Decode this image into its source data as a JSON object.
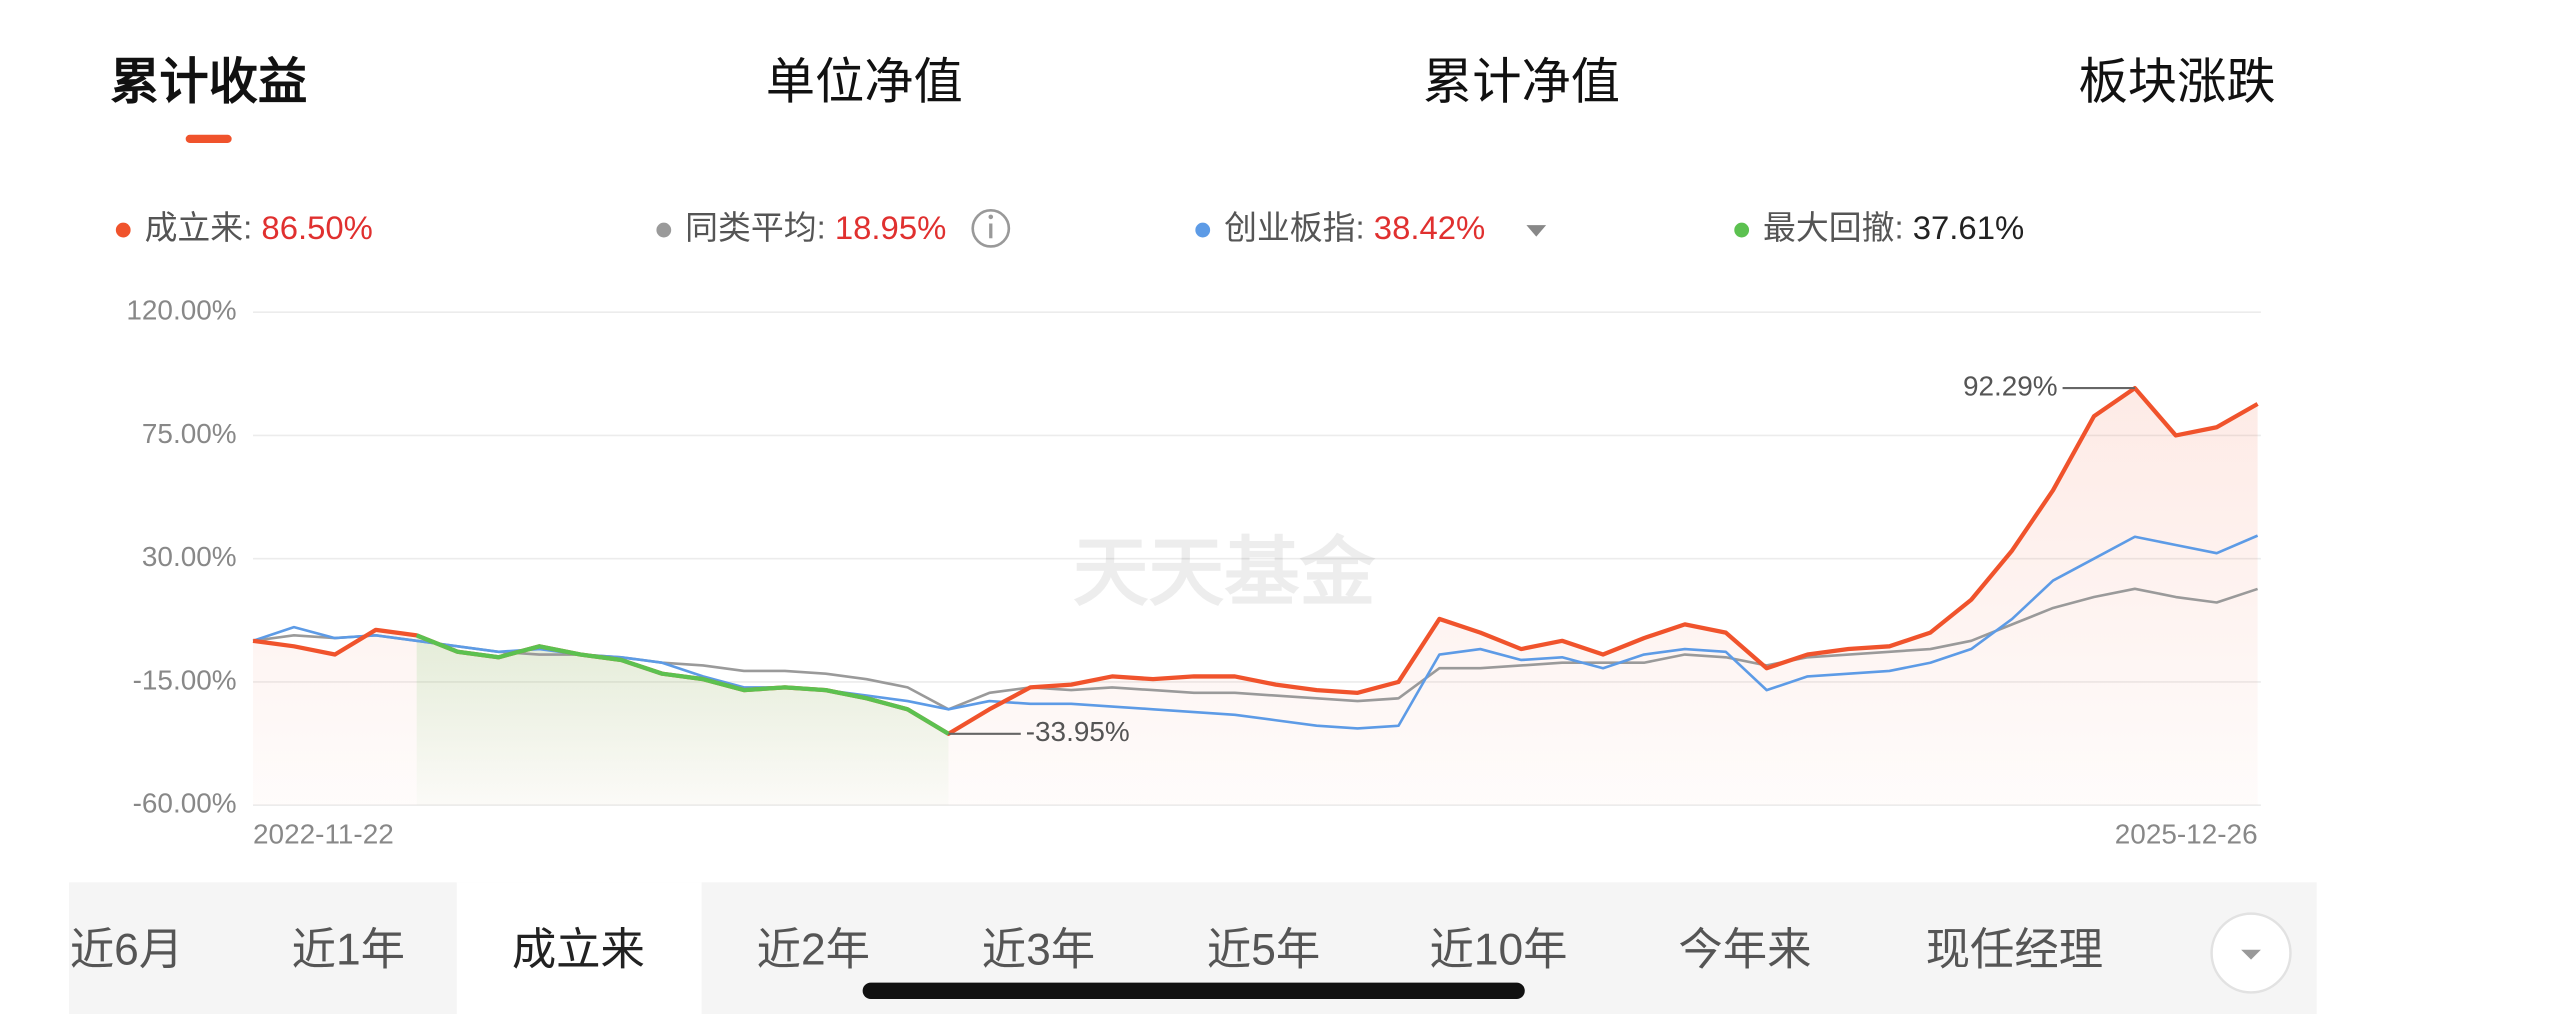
{
  "tabs": {
    "items": [
      "累计收益",
      "单位净值",
      "累计净值",
      "板块涨跌"
    ],
    "active": 0
  },
  "chart_data": {
    "type": "line",
    "watermark": "天天基金",
    "categories": [
      "2022-11-22",
      null,
      null,
      null,
      null,
      null,
      null,
      null,
      null,
      null,
      null,
      null,
      null,
      null,
      null,
      null,
      null,
      null,
      null,
      null,
      null,
      null,
      null,
      null,
      null,
      null,
      null,
      null,
      null,
      null,
      null,
      null,
      null,
      null,
      null,
      null,
      null,
      null,
      null,
      null,
      null,
      null,
      null,
      null,
      null,
      null,
      null,
      null,
      null,
      "2025-12-26"
    ],
    "ylim": [
      -60,
      120
    ],
    "yticks": [
      {
        "value": -60,
        "label": "-60.00%"
      },
      {
        "value": -15,
        "label": "-15.00%"
      },
      {
        "value": 30,
        "label": "30.00%"
      },
      {
        "value": 75,
        "label": "75.00%"
      },
      {
        "value": 120,
        "label": "120.00%"
      }
    ],
    "grid": true,
    "series": [
      {
        "name": "成立来",
        "color": "#f0532c",
        "total": {
          "value": 86.5,
          "label": "86.50%"
        },
        "label_color": "#e0302f",
        "values": [
          0,
          -2,
          -5,
          4,
          2,
          -4,
          -6,
          -2,
          -5,
          -7,
          -12,
          -14,
          -18,
          -17,
          -18,
          -21,
          -25,
          -33.95,
          -25,
          -17,
          -16,
          -13,
          -14,
          -13,
          -13,
          -16,
          -18,
          -19,
          -15,
          8,
          3,
          -3,
          0,
          -5,
          1,
          6,
          3,
          -10,
          -5,
          -3,
          -2,
          3,
          15,
          33,
          55,
          82,
          92.29,
          75,
          78,
          86.5
        ]
      },
      {
        "name": "同类平均",
        "color": "#9a9a9a",
        "total": {
          "value": 18.95,
          "label": "18.95%"
        },
        "label_color": "#e0302f",
        "values": [
          0,
          2,
          1,
          2,
          0,
          -2,
          -4,
          -5,
          -5,
          -6,
          -8,
          -9,
          -11,
          -11,
          -12,
          -14,
          -17,
          -25,
          -19,
          -17,
          -18,
          -17,
          -18,
          -19,
          -19,
          -20,
          -21,
          -22,
          -21,
          -10,
          -10,
          -9,
          -8,
          -8,
          -8,
          -5,
          -6,
          -9,
          -6,
          -5,
          -4,
          -3,
          0,
          6,
          12,
          16,
          19,
          16,
          14,
          18.95
        ]
      },
      {
        "name": "创业板指",
        "color": "#5d9be6",
        "total": {
          "value": 38.42,
          "label": "38.42%"
        },
        "label_color": "#e0302f",
        "values": [
          0,
          5,
          1,
          2,
          0,
          -2,
          -4,
          -3,
          -5,
          -6,
          -8,
          -13,
          -17,
          -17,
          -18,
          -20,
          -22,
          -25,
          -22,
          -23,
          -23,
          -24,
          -25,
          -26,
          -27,
          -29,
          -31,
          -32,
          -31,
          -5,
          -3,
          -7,
          -6,
          -10,
          -5,
          -3,
          -4,
          -18,
          -13,
          -12,
          -11,
          -8,
          -3,
          8,
          22,
          30,
          38,
          35,
          32,
          38.42
        ]
      },
      {
        "name": "最大回撤",
        "color": "#5cc150",
        "total": {
          "value": 37.61,
          "label": "37.61%"
        },
        "label_color": "#222222",
        "values": [
          null,
          null,
          null,
          null,
          2,
          -4,
          -6,
          -2,
          -5,
          -7,
          -12,
          -14,
          -18,
          -17,
          -18,
          -21,
          -25,
          -33.95,
          null,
          null,
          null,
          null,
          null,
          null,
          null,
          null,
          null,
          null,
          null,
          null,
          null,
          null,
          null,
          null,
          null,
          null,
          null,
          null,
          null,
          null,
          null,
          null,
          null,
          null,
          null,
          null,
          null,
          null,
          null,
          null
        ]
      }
    ],
    "annotations": [
      {
        "value": 92.29,
        "label": "92.29%"
      },
      {
        "value": -33.95,
        "label": "-33.95%"
      }
    ]
  },
  "periods": {
    "items": [
      "近6月",
      "近1年",
      "成立来",
      "近2年",
      "近3年",
      "近5年",
      "近10年",
      "今年来",
      "现任经理"
    ],
    "active": 2
  }
}
